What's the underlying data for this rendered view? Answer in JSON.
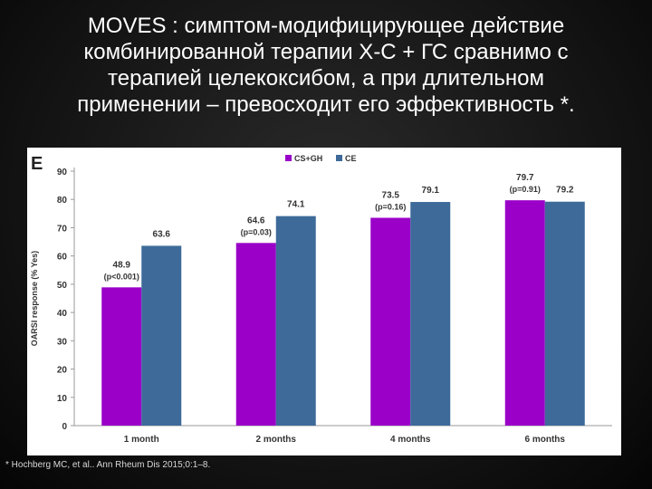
{
  "slide": {
    "title_lines": [
      "MOVES : симптом-модифицирующее действие",
      "комбинированной терапии Х-С + ГС сравнимо  с",
      "терапией целекоксибом, а при длительном",
      "применении – превосходит  его эффективность *."
    ],
    "footnote": "* Hochberg MC, et al.. Ann Rheum Dis 2015;0:1–8."
  },
  "chart_data": {
    "type": "bar",
    "panel_label": "E",
    "categories": [
      "1 month",
      "2 months",
      "4 months",
      "6 months"
    ],
    "series": [
      {
        "name": "CS+GH",
        "color": "#9a00c8",
        "values": [
          48.9,
          64.6,
          73.5,
          79.7
        ]
      },
      {
        "name": "CE",
        "color": "#3d6a99",
        "values": [
          63.6,
          74.1,
          79.1,
          79.2
        ]
      }
    ],
    "p_values": [
      "(p<0.001)",
      "(p=0.03)",
      "(p=0.16)",
      "(p=0.91)"
    ],
    "ylabel": "OARSI response (% Yes)",
    "ylim": [
      0,
      90
    ],
    "yticks": [
      0,
      10,
      20,
      30,
      40,
      50,
      60,
      70,
      80,
      90
    ],
    "legend_position": "top-center",
    "grid": false
  }
}
